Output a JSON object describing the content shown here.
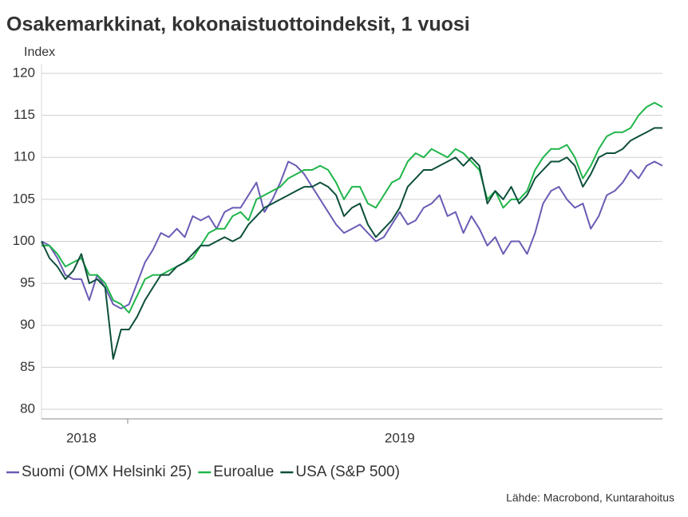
{
  "chart_data": {
    "type": "line",
    "title": "Osakemarkkinat, kokonaistuottoindeksit, 1 vuosi",
    "y_label": "Index",
    "source": "Lähde: Macrobond, Kuntarahoitus",
    "categories": [
      null,
      null,
      null,
      null,
      null,
      "2018",
      null,
      null,
      null,
      null,
      null,
      null,
      null,
      null,
      null,
      null,
      null,
      null,
      null,
      null,
      null,
      null,
      null,
      null,
      null,
      null,
      null,
      null,
      null,
      null,
      null,
      null,
      null,
      null,
      null,
      null,
      null,
      null,
      null,
      null,
      null,
      null,
      null,
      null,
      null,
      "2019",
      null,
      null,
      null,
      null,
      null,
      null,
      null,
      null,
      null,
      null,
      null,
      null,
      null,
      null,
      null,
      null,
      null,
      null,
      null,
      null,
      null,
      null,
      null,
      null,
      null,
      null,
      null,
      null,
      null,
      null,
      null,
      null,
      null
    ],
    "ylim": [
      80,
      120
    ],
    "yticks": [
      80,
      85,
      90,
      95,
      100,
      105,
      110,
      115,
      120
    ],
    "grid": true,
    "series": [
      {
        "name": "Suomi (OMX Helsinki 25)",
        "color": "#6a5bb5",
        "values": [
          100,
          99.5,
          98,
          96,
          95.5,
          95.5,
          93,
          96,
          94.5,
          92.5,
          92,
          92.5,
          95,
          97.5,
          99,
          101,
          100.5,
          101.5,
          100.5,
          103,
          102.5,
          103,
          101.5,
          103.5,
          104,
          104,
          105.5,
          107,
          103.5,
          105,
          107,
          109.5,
          109,
          108,
          106.5,
          105,
          103.5,
          102,
          101,
          101.5,
          102,
          101,
          100,
          100.5,
          102,
          103.5,
          102,
          102.5,
          104,
          104.5,
          105.5,
          103,
          103.5,
          101,
          103,
          101.5,
          99.5,
          100.5,
          98.5,
          100,
          100,
          98.5,
          101,
          104.5,
          106,
          106.5,
          105,
          104,
          104.5,
          101.5,
          103,
          105.5,
          106,
          107,
          108.5,
          107.5,
          109,
          109.5,
          109
        ]
      },
      {
        "name": "Euroalue",
        "color": "#1fb54a",
        "values": [
          99.5,
          99.5,
          98.5,
          97,
          97.5,
          98,
          96,
          96,
          95,
          93,
          92.5,
          91.5,
          93.5,
          95.5,
          96,
          96,
          96.5,
          97,
          97.5,
          98,
          99.5,
          101,
          101.5,
          101.5,
          103,
          103.5,
          102.5,
          105,
          105.5,
          106,
          106.5,
          107.5,
          108,
          108.5,
          108.5,
          109,
          108.5,
          107,
          105,
          106.5,
          106.5,
          104.5,
          104,
          105.5,
          107,
          107.5,
          109.5,
          110.5,
          110,
          111,
          110.5,
          110,
          111,
          110.5,
          109.5,
          108.5,
          105,
          106,
          104,
          105,
          105,
          106,
          108.5,
          110,
          111,
          111,
          111.5,
          110,
          107.5,
          109,
          111,
          112.5,
          113,
          113,
          113.5,
          115,
          116,
          116.5,
          116
        ]
      },
      {
        "name": "USA (S&P 500)",
        "color": "#0d4f3c",
        "values": [
          100,
          98,
          97,
          95.5,
          96.5,
          98.5,
          95,
          95.5,
          94.5,
          86,
          89.5,
          89.5,
          91,
          93,
          94.5,
          96,
          96,
          97,
          97.5,
          98.5,
          99.5,
          99.5,
          100,
          100.5,
          100,
          100.5,
          102,
          103,
          104,
          104.5,
          105,
          105.5,
          106,
          106.5,
          106.5,
          107,
          106.5,
          105.5,
          103,
          104,
          104.5,
          102,
          100.5,
          101.5,
          102.5,
          104,
          106.5,
          107.5,
          108.5,
          108.5,
          109,
          109.5,
          110,
          109,
          110,
          109,
          104.5,
          106,
          105,
          106.5,
          104.5,
          105.5,
          107.5,
          108.5,
          109.5,
          109.5,
          110,
          109,
          106.5,
          108,
          110,
          110.5,
          110.5,
          111,
          112,
          112.5,
          113,
          113.5,
          113.5
        ]
      }
    ]
  }
}
